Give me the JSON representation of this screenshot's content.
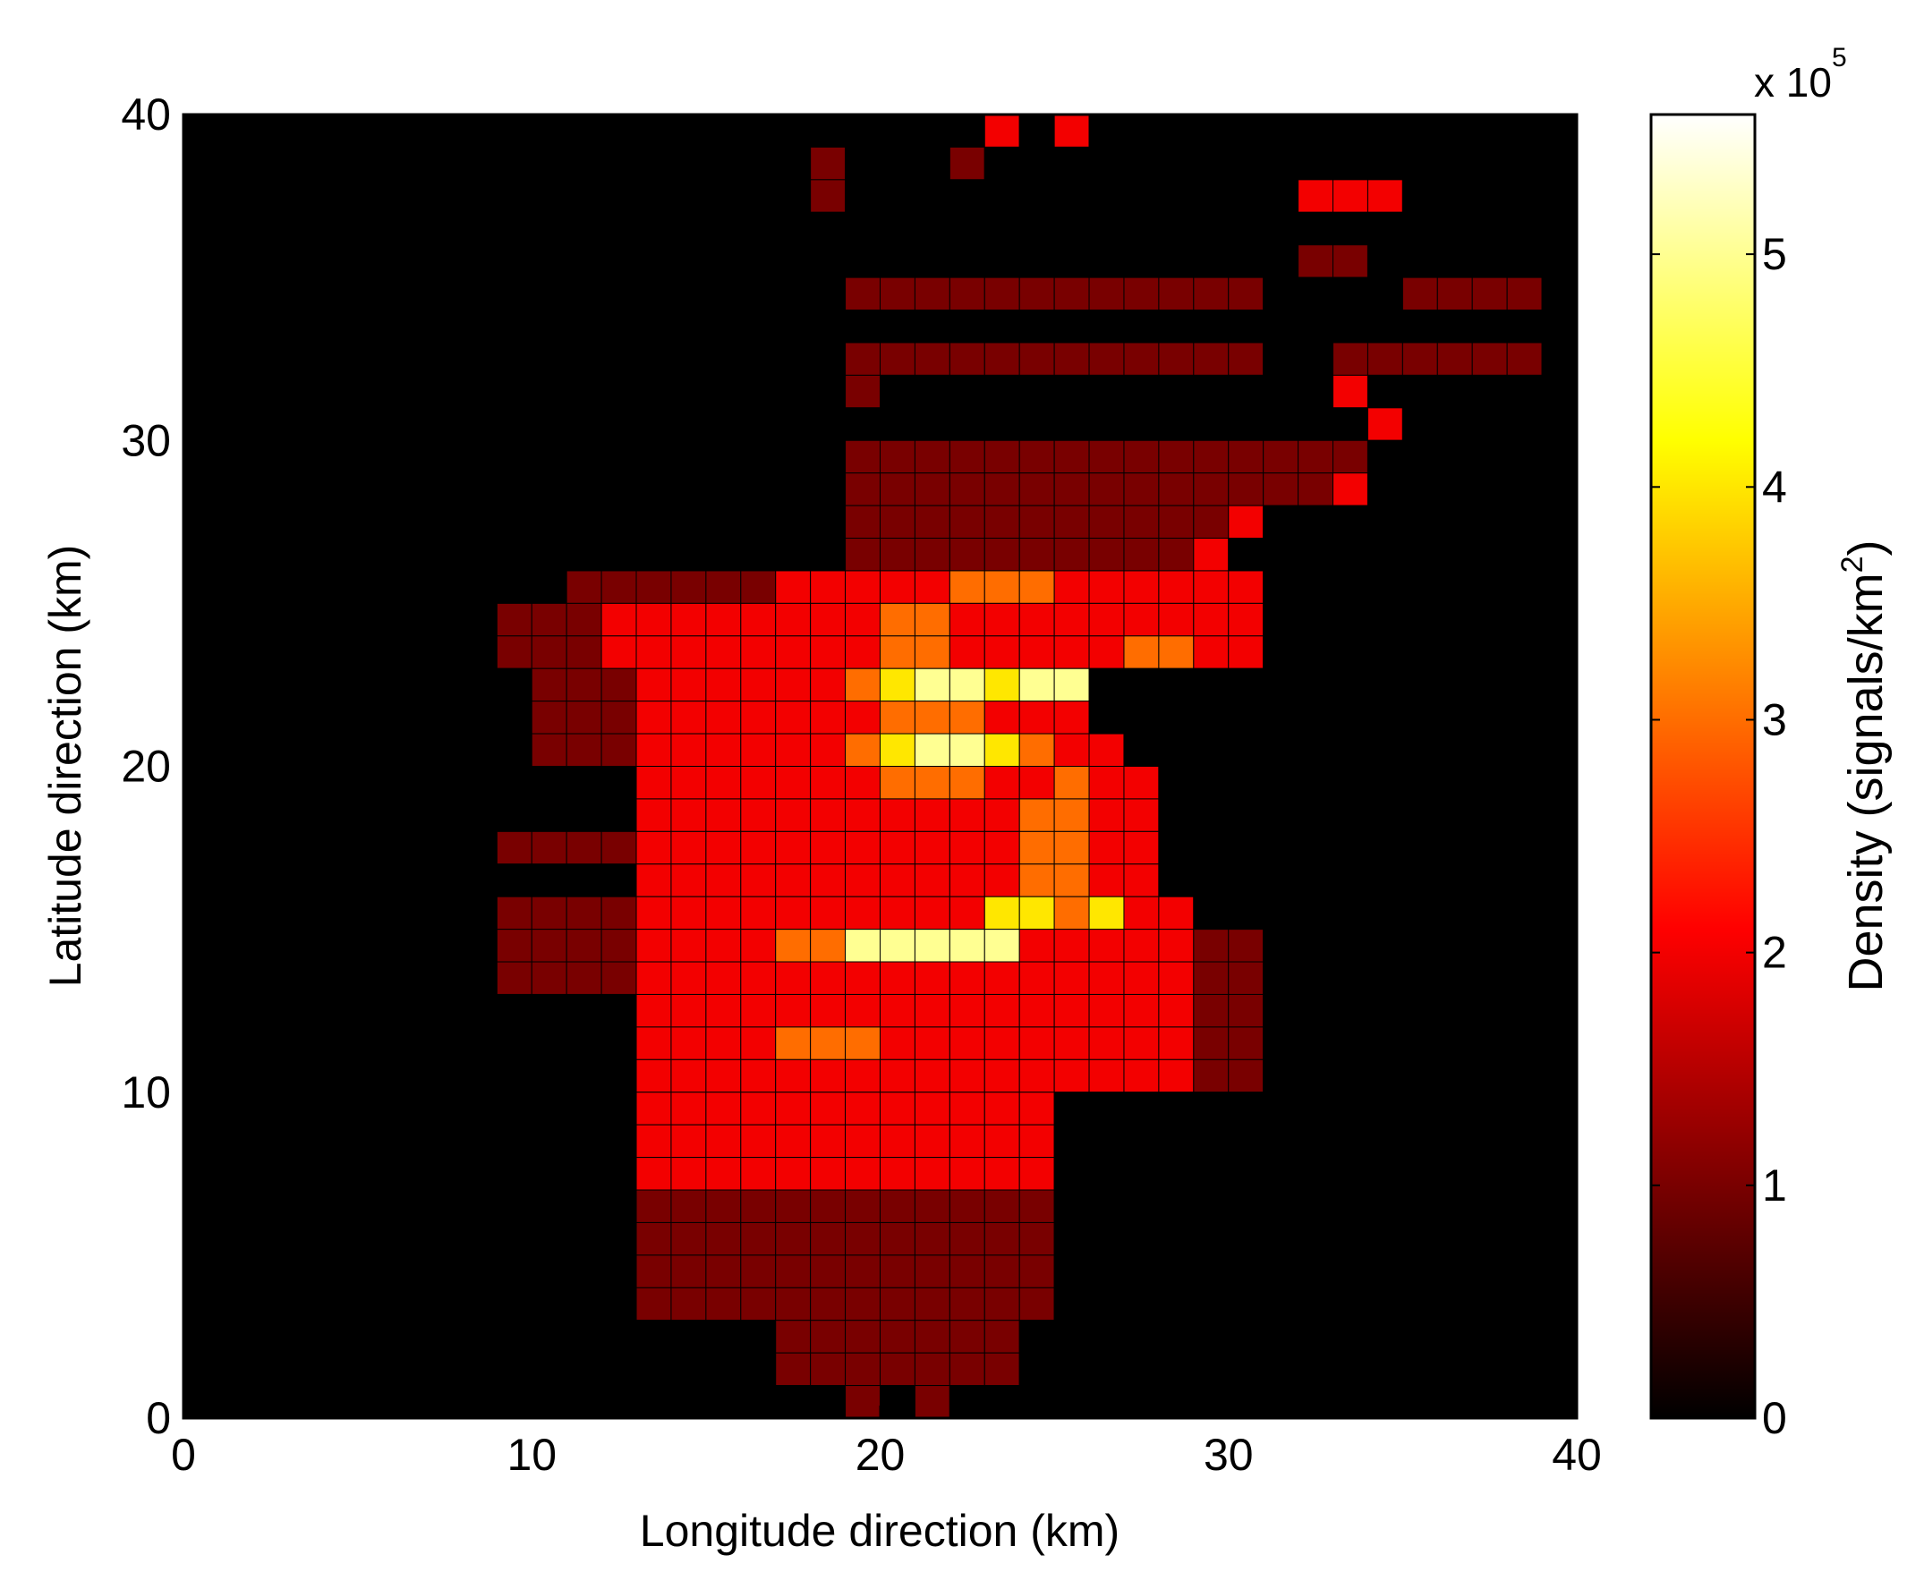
{
  "chart_data": {
    "type": "heatmap",
    "xlabel": "Longitude direction (km)",
    "ylabel": "Latitude direction (km)",
    "xlim": [
      0,
      40
    ],
    "ylim": [
      0,
      40
    ],
    "x_ticks": [
      "0",
      "10",
      "20",
      "30",
      "40"
    ],
    "y_ticks": [
      "0",
      "10",
      "20",
      "30",
      "40"
    ],
    "grid_size": 40,
    "cell_size_km": 1,
    "colorbar": {
      "label_main": "Density (signals/km",
      "label_sup": "2",
      "label_end": ")",
      "multiplier_base": "x 10",
      "multiplier_exp": "5",
      "range": [
        0,
        560000
      ],
      "ticks": [
        "0",
        "1",
        "2",
        "3",
        "4",
        "5"
      ],
      "colormap": "hot"
    },
    "values_units": "x10^5 signals/km^2",
    "rows_top_to_bottom": [
      "0000000000000000000000020200000000000000",
      "0000000000000000001000100000000000000000",
      "0000000000000000001000000000000022200000",
      "0000000000000000000000000000000000000000",
      "0000000000000000000000000000000011000000",
      "0000000000000000000111111111111000011110",
      "0000000000000000000000000000000000000000",
      "0000000000000000000111111111111001111110",
      "0000000000000000000100000000000002000000",
      "0000000000000000000000000000000000200000",
      "0000000000000000000111111111111111000000",
      "0000000000000000000111111111111112000000",
      "0000000000000000000111111111112000000000",
      "0000000000000000000111111111120000000000",
      "0000000000011111122222333222222000000000",
      "0000000001112222222233222222222000000000",
      "0000000001112222222233222223322000000000",
      "0000000000111222222345545500000000000000",
      "0000000000111222222233322200000000000000",
      "0000000000111222222345543220000000000000",
      "0000000000000222222233322322000000000000",
      "0000000000000222222222223322000000000000",
      "0000000001111222222222223322000000000000",
      "0000000000000222222222223322000000000000",
      "0000000001111222222222244342200000000000",
      "0000000001111222233555552222211000000000",
      "0000000001111222222222222222211000000000",
      "0000000000000222222222222222211000000000",
      "0000000000000222233322222222211000000000",
      "0000000000000222222222222222211000000000",
      "0000000000000222222222222000000000000000",
      "0000000000000222222222222000000000000000",
      "0000000000000222222222222000000000000000",
      "0000000000000111111111111000000000000000",
      "0000000000000111111111111000000000000000",
      "0000000000000111111111111000000000000000",
      "0000000000000111111111111000000000000000",
      "0000000000000000011111110000000000000000",
      "0000000000000000011111110000000000000000",
      "0000000000000000000101000000000000000000"
    ]
  }
}
